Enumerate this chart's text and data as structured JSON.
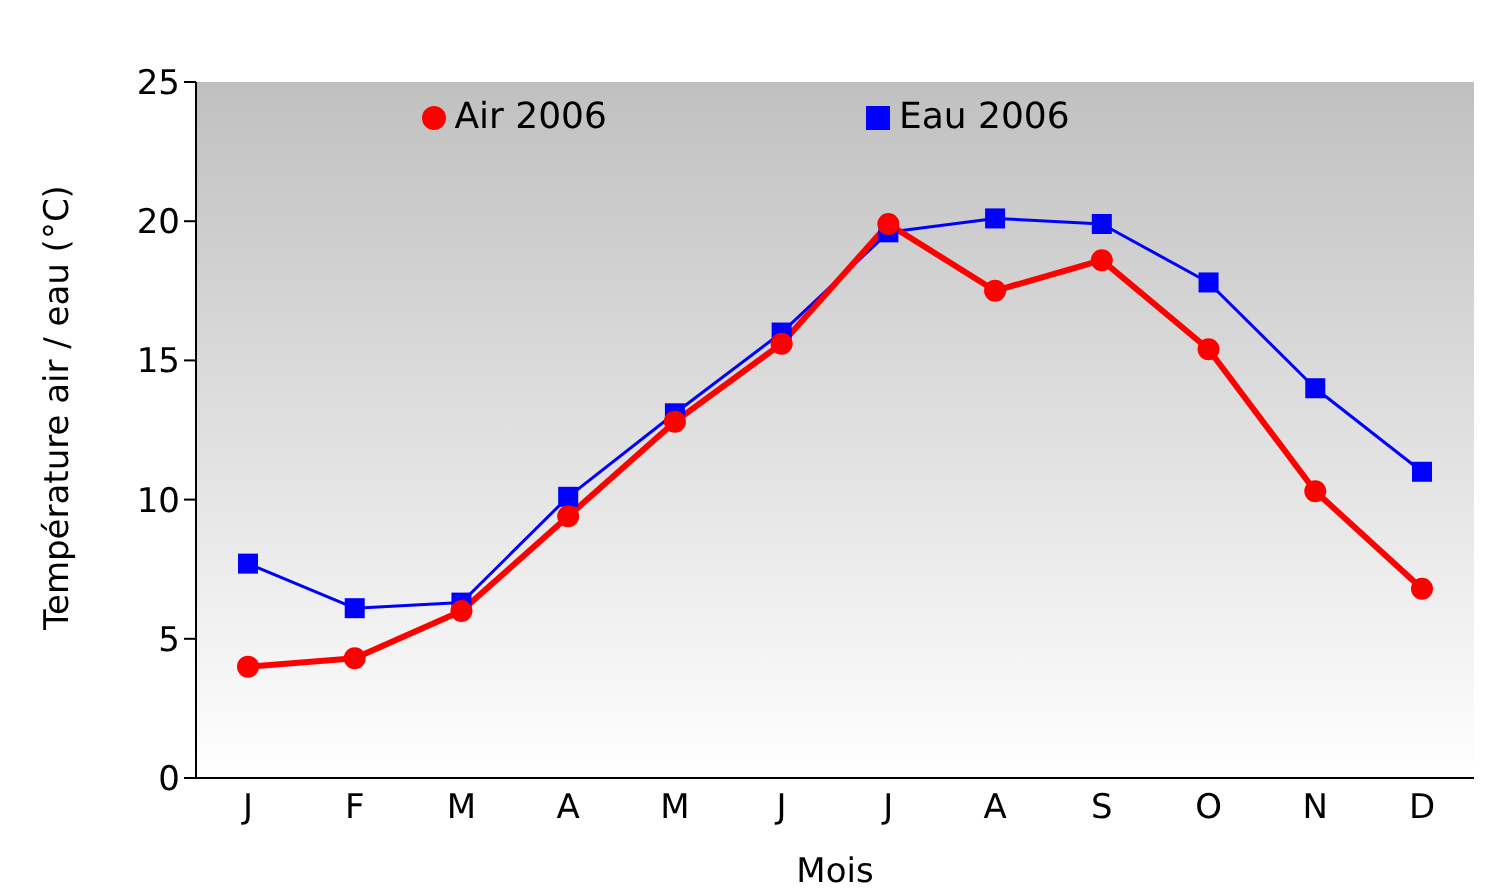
{
  "chart_data": {
    "type": "line",
    "xlabel": "Mois",
    "ylabel": "Température air / eau (°C)",
    "categories": [
      "J",
      "F",
      "M",
      "A",
      "M",
      "J",
      "J",
      "A",
      "S",
      "O",
      "N",
      "D"
    ],
    "series": [
      {
        "name": "Air 2006",
        "color": "#ff0000",
        "marker": "circle",
        "values": [
          4.0,
          4.3,
          6.0,
          9.4,
          12.8,
          15.6,
          19.9,
          17.5,
          18.6,
          15.4,
          10.3,
          6.8
        ]
      },
      {
        "name": "Eau 2006",
        "color": "#0000ff",
        "marker": "square",
        "values": [
          7.7,
          6.1,
          6.3,
          10.1,
          13.1,
          16.0,
          19.6,
          20.1,
          19.9,
          17.8,
          14.0,
          11.0
        ]
      }
    ],
    "ylim": [
      0,
      25
    ],
    "yticks": [
      0,
      5,
      10,
      15,
      20,
      25
    ],
    "grid": false,
    "legend": "top",
    "line_style": "solid"
  }
}
